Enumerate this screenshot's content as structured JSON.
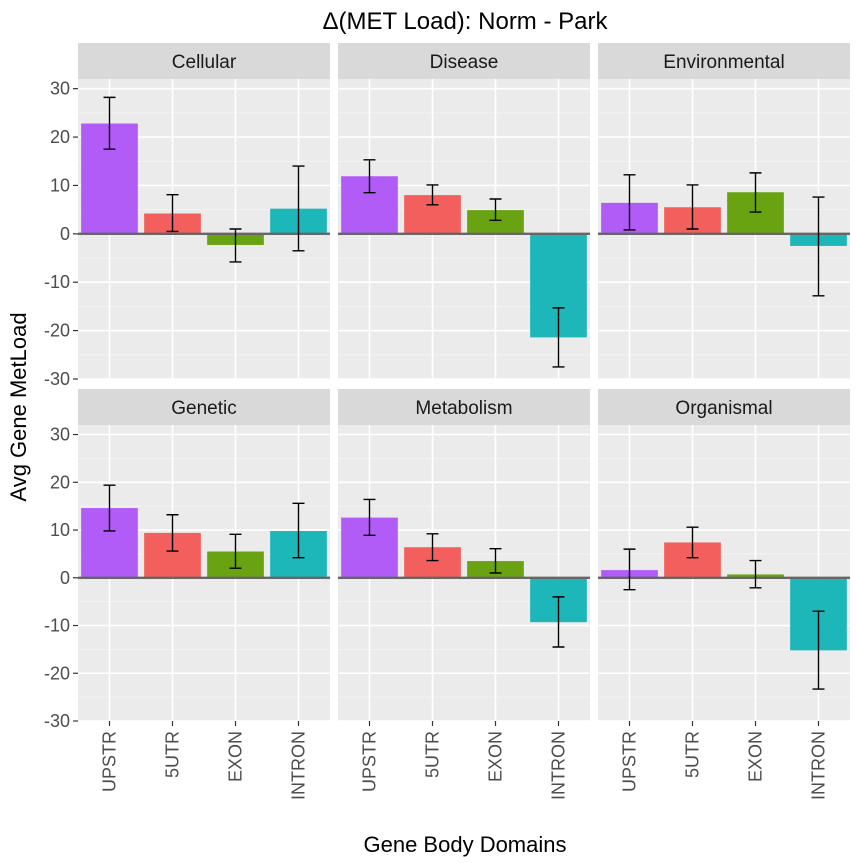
{
  "chart_data": {
    "type": "bar",
    "title": "Δ(MET Load): Norm - Park",
    "xlabel": "Gene Body Domains",
    "ylabel": "Avg Gene MetLoad",
    "ylim": [
      -30,
      32
    ],
    "yticks": [
      -30,
      -20,
      -10,
      0,
      10,
      20,
      30
    ],
    "grid": true,
    "layout": "facet 3 columns x 2 rows",
    "categories": [
      "UPSTR",
      "5UTR",
      "EXON",
      "INTRON"
    ],
    "category_colors": {
      "UPSTR": "#b15cf7",
      "5UTR": "#f25f5c",
      "EXON": "#6aa311",
      "INTRON": "#1eb7b9"
    },
    "panels": [
      {
        "name": "Cellular",
        "values": [
          22.8,
          4.2,
          -2.3,
          5.2
        ],
        "error_low": [
          17.5,
          0.5,
          -5.8,
          -3.5
        ],
        "error_high": [
          28.2,
          8.1,
          1.0,
          14.0
        ]
      },
      {
        "name": "Disease",
        "values": [
          11.9,
          8.0,
          4.9,
          -21.4
        ],
        "error_low": [
          8.5,
          6.0,
          2.8,
          -27.5
        ],
        "error_high": [
          15.3,
          10.1,
          7.2,
          -15.3
        ]
      },
      {
        "name": "Environmental",
        "values": [
          6.4,
          5.5,
          8.6,
          -2.5
        ],
        "error_low": [
          0.8,
          1.0,
          4.5,
          -12.8
        ],
        "error_high": [
          12.2,
          10.1,
          12.6,
          7.6
        ]
      },
      {
        "name": "Genetic",
        "values": [
          14.6,
          9.4,
          5.5,
          9.8
        ],
        "error_low": [
          9.8,
          5.6,
          2.0,
          4.2
        ],
        "error_high": [
          19.4,
          13.2,
          9.1,
          15.6
        ]
      },
      {
        "name": "Metabolism",
        "values": [
          12.6,
          6.4,
          3.5,
          -9.3
        ],
        "error_low": [
          8.9,
          3.6,
          1.0,
          -14.5
        ],
        "error_high": [
          16.4,
          9.2,
          6.1,
          -4.0
        ]
      },
      {
        "name": "Organismal",
        "values": [
          1.6,
          7.4,
          0.7,
          -15.2
        ],
        "error_low": [
          -2.5,
          4.2,
          -2.1,
          -23.3
        ],
        "error_high": [
          6.0,
          10.6,
          3.6,
          -7.0
        ]
      }
    ]
  }
}
